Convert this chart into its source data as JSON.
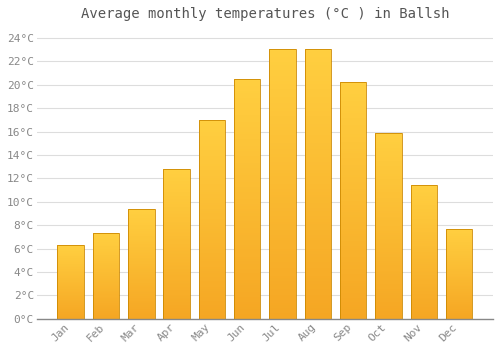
{
  "title": "Average monthly temperatures (°C ) in Ballsh",
  "months": [
    "Jan",
    "Feb",
    "Mar",
    "Apr",
    "May",
    "Jun",
    "Jul",
    "Aug",
    "Sep",
    "Oct",
    "Nov",
    "Dec"
  ],
  "values": [
    6.3,
    7.3,
    9.4,
    12.8,
    17.0,
    20.5,
    23.1,
    23.1,
    20.2,
    15.9,
    11.4,
    7.7
  ],
  "bar_color_top": "#FFCF40",
  "bar_color_bottom": "#F5A623",
  "bar_edge_color": "#CC8800",
  "background_color": "#FFFFFF",
  "plot_bg_color": "#FFFFFF",
  "grid_color": "#DDDDDD",
  "title_color": "#555555",
  "tick_color": "#888888",
  "ylim": [
    0,
    25
  ],
  "yticks": [
    0,
    2,
    4,
    6,
    8,
    10,
    12,
    14,
    16,
    18,
    20,
    22,
    24
  ],
  "title_fontsize": 10,
  "tick_fontsize": 8,
  "font_family": "monospace",
  "bar_width": 0.75
}
